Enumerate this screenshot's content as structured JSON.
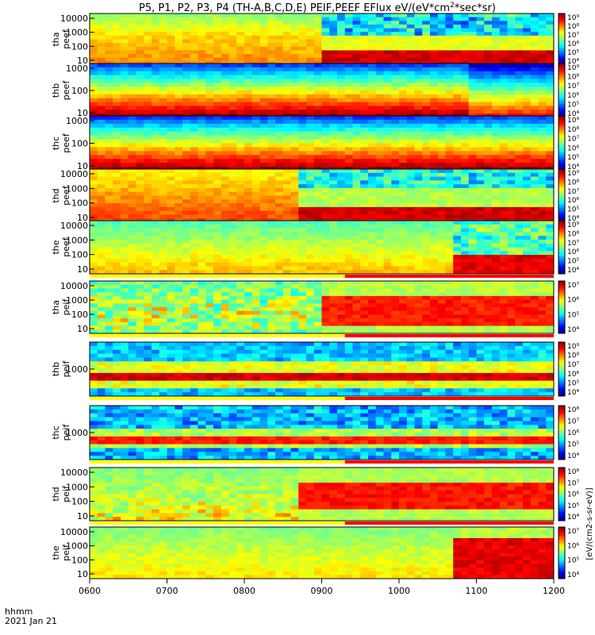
{
  "chart_data": {
    "type": "heatmap",
    "title": "P5, P1, P2, P3, P4 (TH-A,B,C,D,E) PEIF,PEEF EFlux eV/(eV*cm²*sec*sr)",
    "title_main": "P5, P1, P2, P3, P4 (TH-A,B,C,D,E) PEIF,PEEF EFlux eV/(eV*cm",
    "title_sup": "2",
    "title_end": "*sec*sr)",
    "x_ticks": [
      "0600",
      "0700",
      "0800",
      "0900",
      "1000",
      "1100",
      "1200"
    ],
    "x_range": [
      "0600",
      "1200"
    ],
    "xlabel": "hhmm",
    "date_label": "2021 Jan 21",
    "y_scale": "log",
    "z_scale": "log",
    "colormap": "rainbow",
    "colorbar_label": "[eV/(cm2-s-sr-eV)]",
    "panels": [
      {
        "probe": "tha",
        "species": "peef",
        "ylabel": [
          "tha",
          "peef"
        ],
        "yticks": [
          "10000",
          "1000",
          "100",
          "10"
        ],
        "colorbar_ticks": [
          "10⁹",
          "10⁸",
          "10⁷",
          "10⁶",
          "10⁵",
          "10⁴"
        ],
        "flag_bar": false
      },
      {
        "probe": "thb",
        "species": "peef",
        "ylabel": [
          "thb",
          "peef"
        ],
        "yticks": [
          "1000",
          "100",
          "10"
        ],
        "colorbar_ticks": [
          "10⁹",
          "10⁸",
          "10⁷",
          "10⁶",
          "10⁵",
          "10⁴"
        ],
        "flag_bar": false
      },
      {
        "probe": "thc",
        "species": "peef",
        "ylabel": [
          "thc",
          "peef"
        ],
        "yticks": [
          "1000",
          "100",
          "10"
        ],
        "colorbar_ticks": [
          "10⁹",
          "10⁸",
          "10⁷",
          "10⁶",
          "10⁵",
          "10⁴"
        ],
        "flag_bar": false
      },
      {
        "probe": "thd",
        "species": "peef",
        "ylabel": [
          "thd",
          "peef"
        ],
        "yticks": [
          "10000",
          "1000",
          "100",
          "10"
        ],
        "colorbar_ticks": [
          "10⁹",
          "10⁸",
          "10⁷",
          "10⁶",
          "10⁵",
          "10⁴"
        ],
        "flag_bar": false
      },
      {
        "probe": "the",
        "species": "peef",
        "ylabel": [
          "the",
          "peef"
        ],
        "yticks": [
          "10000",
          "1000",
          "100",
          "10"
        ],
        "colorbar_ticks": [
          "10⁹",
          "10⁸",
          "10⁷",
          "10⁶",
          "10⁵",
          "10⁴"
        ],
        "flag_bar": true
      },
      {
        "probe": "tha",
        "species": "peif",
        "ylabel": [
          "tha",
          "peif"
        ],
        "yticks": [
          "10000",
          "1000",
          "100",
          "10"
        ],
        "colorbar_ticks": [
          "10⁷",
          "10⁶",
          "10⁵",
          "10⁴"
        ],
        "flag_bar": true
      },
      {
        "probe": "thb",
        "species": "peif",
        "ylabel": [
          "thb",
          "peif"
        ],
        "yticks": [
          "1000"
        ],
        "colorbar_ticks": [
          "10⁹",
          "10⁸",
          "10⁷",
          "10⁶",
          "10⁵",
          "10⁴"
        ],
        "flag_bar": true
      },
      {
        "probe": "thc",
        "species": "peif",
        "ylabel": [
          "thc",
          "peif"
        ],
        "yticks": [
          "1000"
        ],
        "colorbar_ticks": [
          "10⁸",
          "10⁷",
          "10⁶",
          "10⁵",
          "10⁴"
        ],
        "flag_bar": true
      },
      {
        "probe": "thd",
        "species": "peif",
        "ylabel": [
          "thd",
          "peif"
        ],
        "yticks": [
          "10000",
          "1000",
          "100",
          "10"
        ],
        "colorbar_ticks": [
          "10⁸",
          "10⁷",
          "10⁶",
          "10⁵",
          "10⁴"
        ],
        "flag_bar": true
      },
      {
        "probe": "the",
        "species": "peif",
        "ylabel": [
          "the",
          "peif"
        ],
        "yticks": [
          "10000",
          "1000",
          "100",
          "10"
        ],
        "colorbar_ticks": [
          "10⁷",
          "10⁶",
          "10⁵",
          "10⁴"
        ],
        "flag_bar": false
      }
    ]
  }
}
